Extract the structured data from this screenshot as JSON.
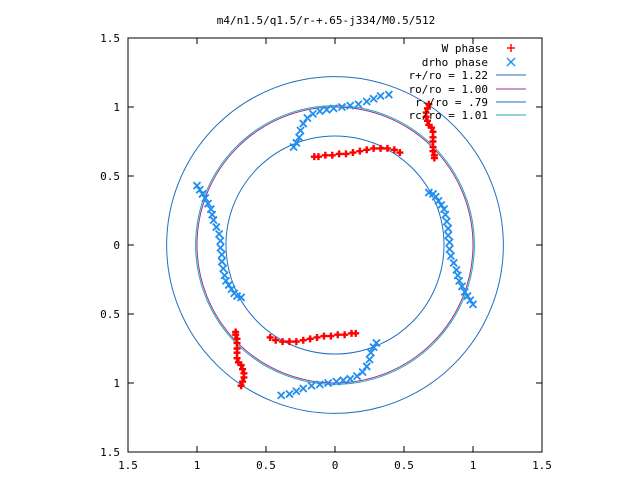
{
  "chart_data": {
    "type": "scatter",
    "title": "m4/n1.5/q1.5/r-+.65-j334/M0.5/512",
    "xlabel": "",
    "ylabel": "",
    "xlim": [
      -1.5,
      1.5
    ],
    "ylim": [
      -1.5,
      1.5
    ],
    "x_tick_labels": [
      "1.5",
      "1",
      "0.5",
      "0",
      "0.5",
      "1",
      "1.5"
    ],
    "y_tick_labels": [
      "1.5",
      "1",
      "0.5",
      "0",
      "0.5",
      "1",
      "1.5"
    ],
    "grid": false,
    "legend_position": "top-right",
    "circles": [
      {
        "label": "r+/ro = 1.22",
        "radius": 1.22,
        "color": "#1f6fc0"
      },
      {
        "label": "ro/ro = 1.00",
        "radius": 1.0,
        "color": "#9b2c9b"
      },
      {
        "label": "r-/ro = .79",
        "radius": 0.79,
        "color": "#1f6fc0"
      },
      {
        "label": "rc/ro = 1.01",
        "radius": 1.01,
        "color": "#22aaaa"
      }
    ],
    "legend_labels": {
      "w_phase": "W phase",
      "drho_phase": "drho phase",
      "r_plus": "r+/ro = 1.22",
      "r_o": "ro/ro = 1.00",
      "r_minus": "r-/ro = .79",
      "r_c": "rc/ro = 1.01"
    },
    "series": [
      {
        "name": "W phase",
        "marker": "+",
        "color": "#ff0000",
        "points": [
          [
            0.68,
            1.02
          ],
          [
            0.67,
            0.99
          ],
          [
            0.66,
            0.96
          ],
          [
            0.66,
            0.93
          ],
          [
            0.67,
            0.9
          ],
          [
            0.68,
            0.87
          ],
          [
            0.7,
            0.85
          ],
          [
            0.71,
            0.82
          ],
          [
            0.71,
            0.78
          ],
          [
            0.71,
            0.75
          ],
          [
            0.71,
            0.71
          ],
          [
            0.71,
            0.68
          ],
          [
            0.72,
            0.65
          ],
          [
            0.72,
            0.63
          ],
          [
            0.47,
            0.67
          ],
          [
            0.43,
            0.69
          ],
          [
            0.38,
            0.7
          ],
          [
            0.33,
            0.7
          ],
          [
            0.28,
            0.7
          ],
          [
            0.23,
            0.69
          ],
          [
            0.18,
            0.68
          ],
          [
            0.13,
            0.67
          ],
          [
            0.08,
            0.66
          ],
          [
            0.03,
            0.66
          ],
          [
            -0.02,
            0.65
          ],
          [
            -0.07,
            0.65
          ],
          [
            -0.12,
            0.64
          ],
          [
            -0.15,
            0.64
          ],
          [
            -0.68,
            -1.02
          ],
          [
            -0.67,
            -0.99
          ],
          [
            -0.66,
            -0.96
          ],
          [
            -0.66,
            -0.93
          ],
          [
            -0.67,
            -0.9
          ],
          [
            -0.68,
            -0.87
          ],
          [
            -0.7,
            -0.85
          ],
          [
            -0.71,
            -0.82
          ],
          [
            -0.71,
            -0.78
          ],
          [
            -0.71,
            -0.75
          ],
          [
            -0.71,
            -0.71
          ],
          [
            -0.71,
            -0.68
          ],
          [
            -0.72,
            -0.65
          ],
          [
            -0.72,
            -0.63
          ],
          [
            -0.47,
            -0.67
          ],
          [
            -0.43,
            -0.69
          ],
          [
            -0.38,
            -0.7
          ],
          [
            -0.33,
            -0.7
          ],
          [
            -0.28,
            -0.7
          ],
          [
            -0.23,
            -0.69
          ],
          [
            -0.18,
            -0.68
          ],
          [
            -0.13,
            -0.67
          ],
          [
            -0.08,
            -0.66
          ],
          [
            -0.03,
            -0.66
          ],
          [
            0.02,
            -0.65
          ],
          [
            0.07,
            -0.65
          ],
          [
            0.12,
            -0.64
          ],
          [
            0.15,
            -0.64
          ]
        ]
      },
      {
        "name": "drho phase",
        "marker": "x",
        "color": "#1f8ef0",
        "points": [
          [
            0.39,
            1.09
          ],
          [
            0.33,
            1.08
          ],
          [
            0.28,
            1.06
          ],
          [
            0.23,
            1.04
          ],
          [
            0.17,
            1.02
          ],
          [
            0.11,
            1.01
          ],
          [
            0.05,
            1.0
          ],
          [
            -0.01,
            0.99
          ],
          [
            -0.06,
            0.98
          ],
          [
            -0.11,
            0.97
          ],
          [
            -0.16,
            0.95
          ],
          [
            -0.2,
            0.92
          ],
          [
            -0.23,
            0.88
          ],
          [
            -0.25,
            0.83
          ],
          [
            -0.26,
            0.78
          ],
          [
            -0.28,
            0.74
          ],
          [
            -0.3,
            0.71
          ],
          [
            0.68,
            0.38
          ],
          [
            0.71,
            0.37
          ],
          [
            0.73,
            0.35
          ],
          [
            0.75,
            0.32
          ],
          [
            0.77,
            0.29
          ],
          [
            0.79,
            0.26
          ],
          [
            0.8,
            0.22
          ],
          [
            0.81,
            0.17
          ],
          [
            0.82,
            0.12
          ],
          [
            0.82,
            0.07
          ],
          [
            0.83,
            0.02
          ],
          [
            0.83,
            -0.03
          ],
          [
            0.84,
            -0.08
          ],
          [
            0.86,
            -0.13
          ],
          [
            0.88,
            -0.18
          ],
          [
            0.89,
            -0.22
          ],
          [
            0.9,
            -0.26
          ],
          [
            0.92,
            -0.3
          ],
          [
            0.94,
            -0.34
          ],
          [
            0.96,
            -0.37
          ],
          [
            0.98,
            -0.4
          ],
          [
            1.0,
            -0.43
          ],
          [
            -0.39,
            -1.09
          ],
          [
            -0.33,
            -1.08
          ],
          [
            -0.28,
            -1.06
          ],
          [
            -0.23,
            -1.04
          ],
          [
            -0.17,
            -1.02
          ],
          [
            -0.11,
            -1.01
          ],
          [
            -0.05,
            -1.0
          ],
          [
            0.01,
            -0.99
          ],
          [
            0.06,
            -0.98
          ],
          [
            0.11,
            -0.97
          ],
          [
            0.16,
            -0.95
          ],
          [
            0.2,
            -0.92
          ],
          [
            0.23,
            -0.88
          ],
          [
            0.25,
            -0.83
          ],
          [
            0.26,
            -0.78
          ],
          [
            0.28,
            -0.74
          ],
          [
            0.3,
            -0.71
          ],
          [
            -0.68,
            -0.38
          ],
          [
            -0.71,
            -0.37
          ],
          [
            -0.73,
            -0.35
          ],
          [
            -0.75,
            -0.32
          ],
          [
            -0.77,
            -0.29
          ],
          [
            -0.79,
            -0.26
          ],
          [
            -0.8,
            -0.22
          ],
          [
            -0.81,
            -0.17
          ],
          [
            -0.82,
            -0.12
          ],
          [
            -0.82,
            -0.07
          ],
          [
            -0.83,
            -0.02
          ],
          [
            -0.83,
            0.03
          ],
          [
            -0.84,
            0.08
          ],
          [
            -0.86,
            0.13
          ],
          [
            -0.88,
            0.18
          ],
          [
            -0.89,
            0.22
          ],
          [
            -0.9,
            0.26
          ],
          [
            -0.92,
            0.3
          ],
          [
            -0.94,
            0.34
          ],
          [
            -0.96,
            0.37
          ],
          [
            -0.98,
            0.4
          ],
          [
            -1.0,
            0.43
          ]
        ]
      }
    ]
  }
}
